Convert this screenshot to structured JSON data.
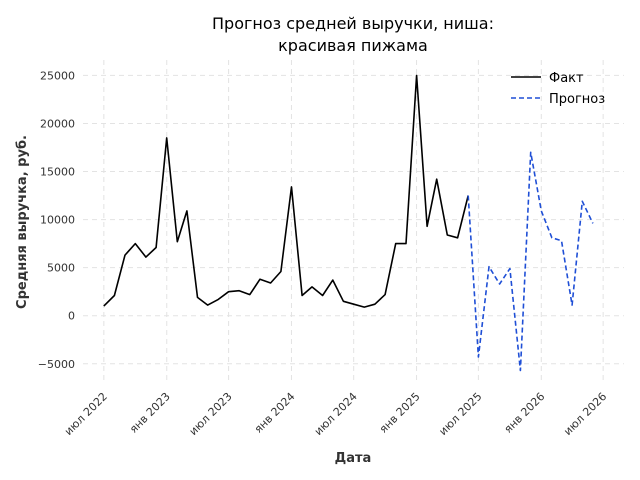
{
  "chart_data": {
    "type": "line",
    "title_line1": "Прогноз средней выручки, ниша:",
    "title_line2": "красивая пижама",
    "xlabel": "Дата",
    "ylabel": "Средняя выручка, руб.",
    "x_tick_labels": [
      "июл 2022",
      "янв 2023",
      "июл 2023",
      "янв 2024",
      "июл 2024",
      "янв 2025",
      "июл 2025",
      "янв 2026",
      "июл 2026"
    ],
    "x_tick_dates": [
      "2022-07-01",
      "2023-01-01",
      "2023-07-01",
      "2024-01-01",
      "2024-07-01",
      "2025-01-01",
      "2025-07-01",
      "2026-01-01",
      "2026-07-01"
    ],
    "y_ticks": [
      -5000,
      0,
      5000,
      10000,
      15000,
      20000,
      25000
    ],
    "y_tick_labels": [
      "−5000",
      "0",
      "5000",
      "10000",
      "15000",
      "20000",
      "25000"
    ],
    "xlim": [
      "2022-05-01",
      "2026-08-31"
    ],
    "ylim": [
      -7000,
      26600
    ],
    "grid": true,
    "legend_position": "top-right",
    "series": [
      {
        "name": "Факт",
        "color": "#000000",
        "style": "solid",
        "x": [
          "2022-07-01",
          "2022-08-01",
          "2022-09-01",
          "2022-10-01",
          "2022-11-01",
          "2022-12-01",
          "2023-01-01",
          "2023-02-01",
          "2023-03-01",
          "2023-04-01",
          "2023-05-01",
          "2023-06-01",
          "2023-07-01",
          "2023-08-01",
          "2023-09-01",
          "2023-10-01",
          "2023-11-01",
          "2023-12-01",
          "2024-01-01",
          "2024-02-01",
          "2024-03-01",
          "2024-04-01",
          "2024-05-01",
          "2024-06-01",
          "2024-07-01",
          "2024-08-01",
          "2024-09-01",
          "2024-10-01",
          "2024-11-01",
          "2024-12-01",
          "2025-01-01",
          "2025-02-01",
          "2025-03-01",
          "2025-04-01",
          "2025-05-01",
          "2025-06-01"
        ],
        "y": [
          1000,
          2100,
          6300,
          7500,
          6100,
          7100,
          18500,
          7700,
          10900,
          1900,
          1100,
          1700,
          2500,
          2600,
          2200,
          3800,
          3400,
          4600,
          13400,
          2100,
          3000,
          2100,
          3700,
          1500,
          1200,
          900,
          1200,
          2200,
          7500,
          7500,
          25000,
          9300,
          14200,
          8400,
          8100,
          12500
        ]
      },
      {
        "name": "Прогноз",
        "color": "#1f4fd6",
        "style": "dashed",
        "x": [
          "2025-06-01",
          "2025-07-01",
          "2025-08-01",
          "2025-09-01",
          "2025-10-01",
          "2025-11-01",
          "2025-12-01",
          "2026-01-01",
          "2026-02-01",
          "2026-03-01",
          "2026-04-01",
          "2026-05-01",
          "2026-06-01",
          "2026-07-01"
        ],
        "y": [
          12500,
          -4300,
          5100,
          3300,
          4900,
          -5700,
          17000,
          10900,
          8100,
          7800,
          1100,
          11900,
          9600,
          null
        ]
      }
    ]
  }
}
